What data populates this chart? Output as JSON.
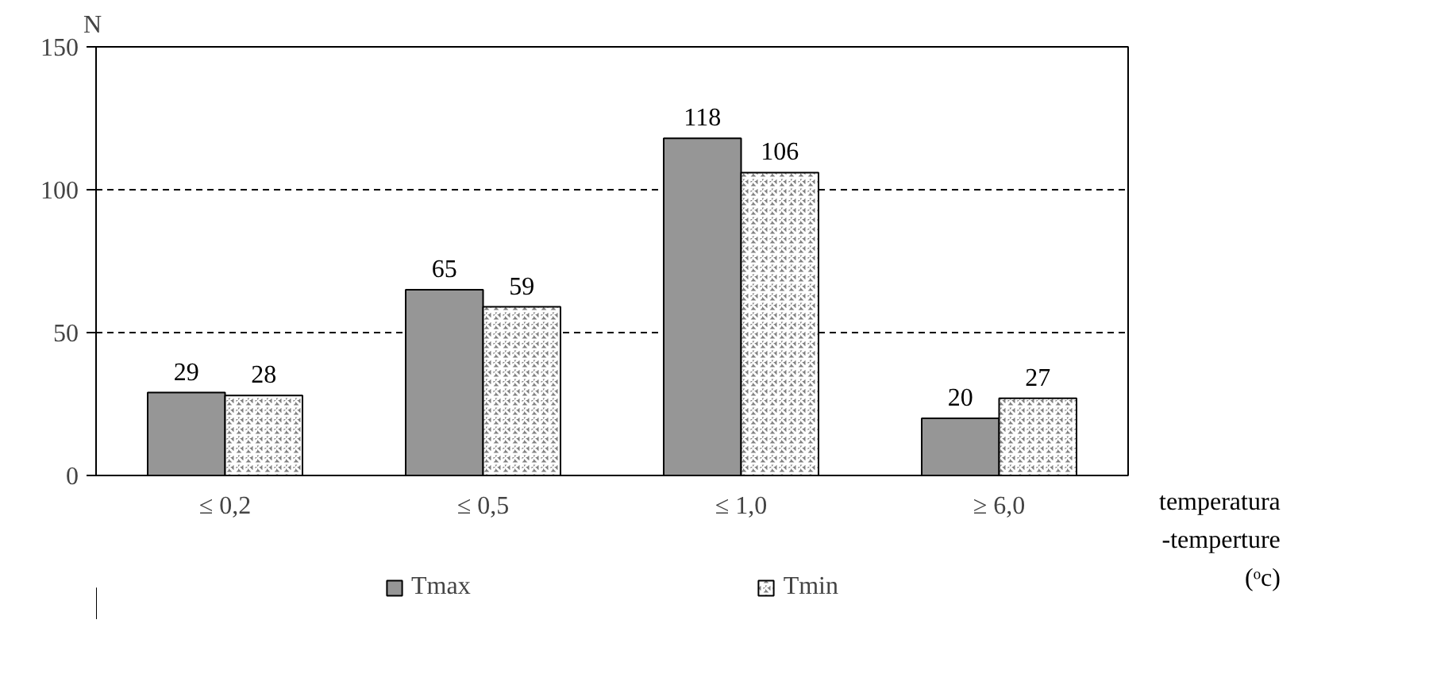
{
  "chart_data": {
    "type": "bar",
    "categories": [
      "≤ 0,2",
      "≤ 0,5",
      "≤ 1,0",
      "≥ 6,0"
    ],
    "series": [
      {
        "name": "Tmax",
        "color": "#969696",
        "values": [
          29,
          65,
          118,
          20
        ]
      },
      {
        "name": "Tmin",
        "color": "#7f7f7f",
        "values": [
          28,
          59,
          106,
          27
        ]
      }
    ],
    "ylabel": "N",
    "xlabel": "temperatura -temperture (ᵒc)",
    "ylim": [
      0,
      150
    ],
    "yticks": [
      0,
      50,
      100,
      150
    ],
    "grid": "y",
    "legend": "bottom",
    "data_labels": true
  }
}
